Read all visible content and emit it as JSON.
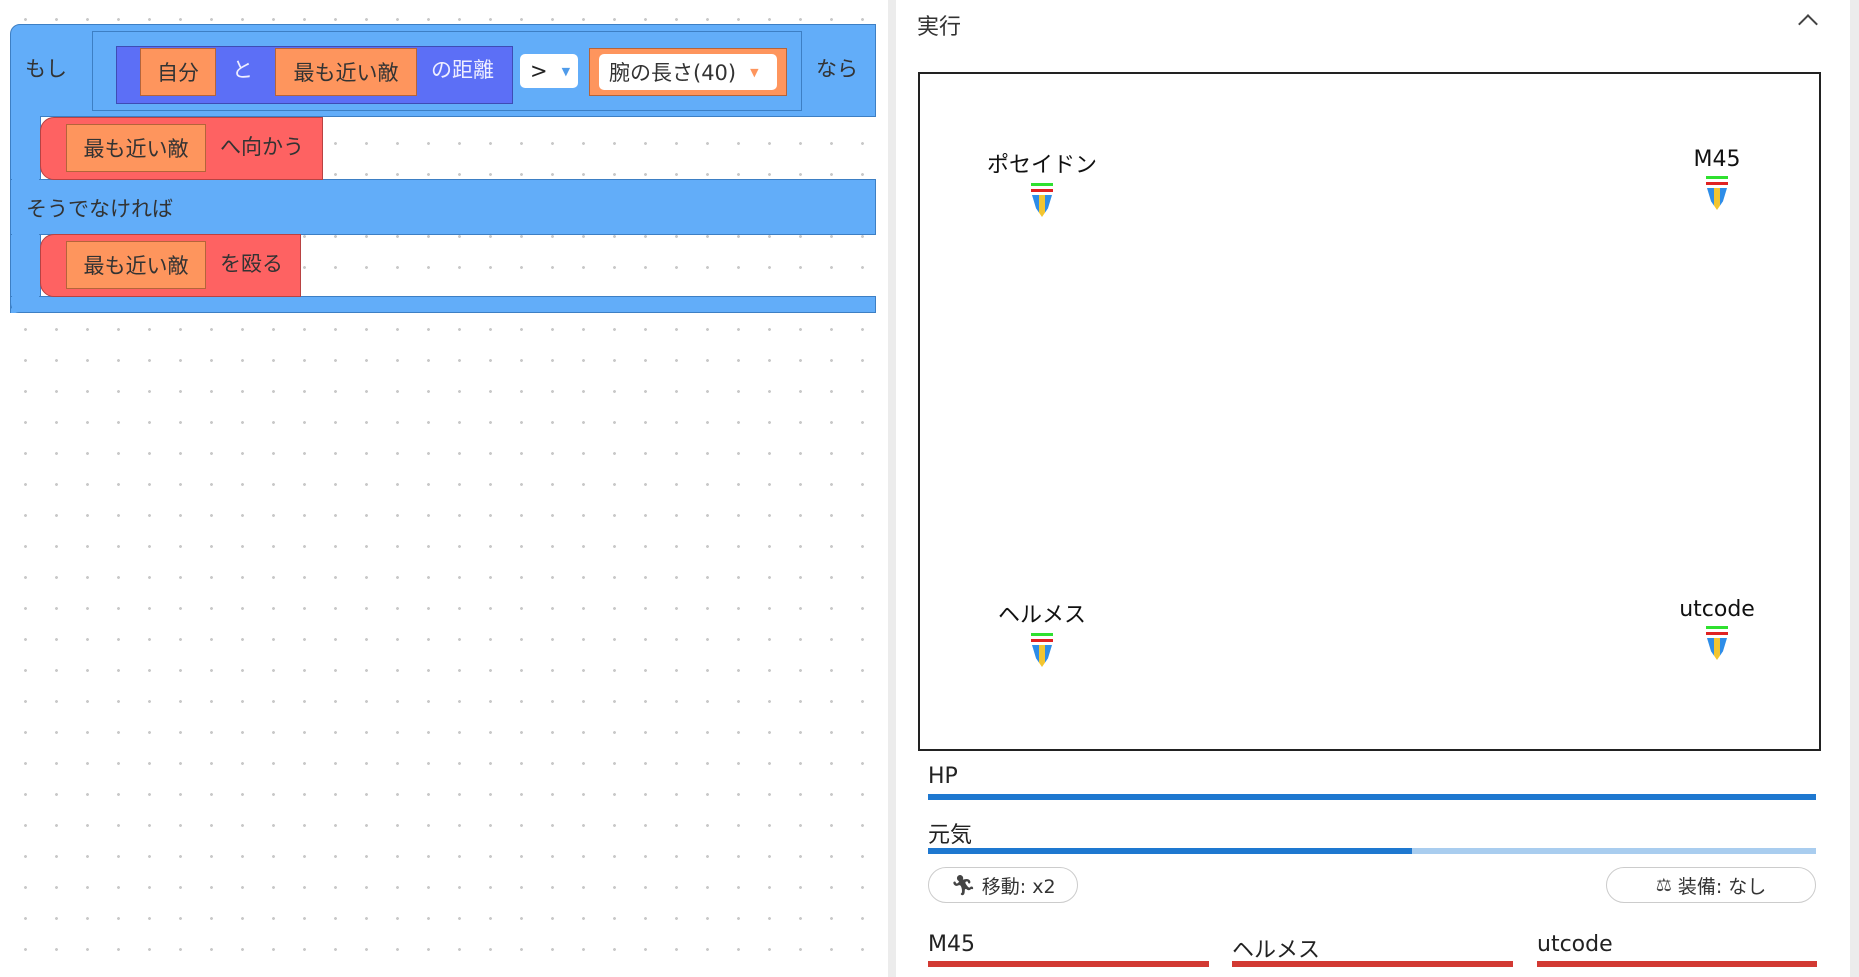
{
  "workspace": {
    "if_block": {
      "if_label": "もし",
      "self": "自分",
      "and": "と",
      "nearest_enemy": "最も近い敵",
      "distance": "の距離",
      "operator": ">",
      "arm_length": "腕の長さ(40)",
      "then_label": "なら",
      "else_label": "そうでなければ"
    },
    "then_action": {
      "target": "最も近い敵",
      "verb": "へ向かう"
    },
    "else_action": {
      "target": "最も近い敵",
      "verb": "を殴る"
    }
  },
  "panel": {
    "title": "実行",
    "stage": {
      "characters": [
        {
          "name": "ポセイドン"
        },
        {
          "name": "M45"
        },
        {
          "name": "ヘルメス"
        },
        {
          "name": "utcode"
        }
      ]
    },
    "hp": {
      "label": "HP",
      "value": 1.0
    },
    "energy": {
      "label": "元気",
      "value": 0.545
    },
    "move_button": {
      "icon": "running-icon",
      "label": "移動: x2"
    },
    "equip_button": {
      "icon": "scale-icon",
      "label": "装備: なし"
    },
    "enemies": [
      {
        "name": "M45",
        "hp": 1.0
      },
      {
        "name": "ヘルメス",
        "hp": 1.0
      },
      {
        "name": "utcode",
        "hp": 1.0
      }
    ]
  },
  "colors": {
    "block_blue": "#62adf9",
    "block_purple": "#5c6ff6",
    "block_orange": "#fe955d",
    "block_red": "#fe6262",
    "bar_blue": "#1e78d0",
    "bar_blue_track": "#a9cdef",
    "enemy_bar_red": "#d23a33"
  }
}
